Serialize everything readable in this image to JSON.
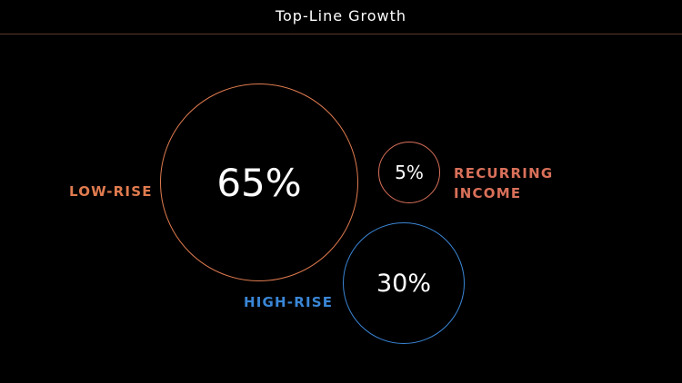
{
  "header": {
    "title": "Top-Line Growth"
  },
  "chart_data": {
    "type": "bubble",
    "title": "Top-Line Growth",
    "series": [
      {
        "name": "LOW-RISE",
        "value": 65,
        "label": "65%",
        "color": "#e07b4f"
      },
      {
        "name": "RECURRING INCOME",
        "value": 5,
        "label": "5%",
        "color": "#d9705a"
      },
      {
        "name": "HIGH-RISE",
        "value": 30,
        "label": "30%",
        "color": "#3a86d6"
      }
    ]
  },
  "colors": {
    "background": "#000000",
    "title_text": "#ffffff",
    "divider": "#5a3a2a"
  }
}
